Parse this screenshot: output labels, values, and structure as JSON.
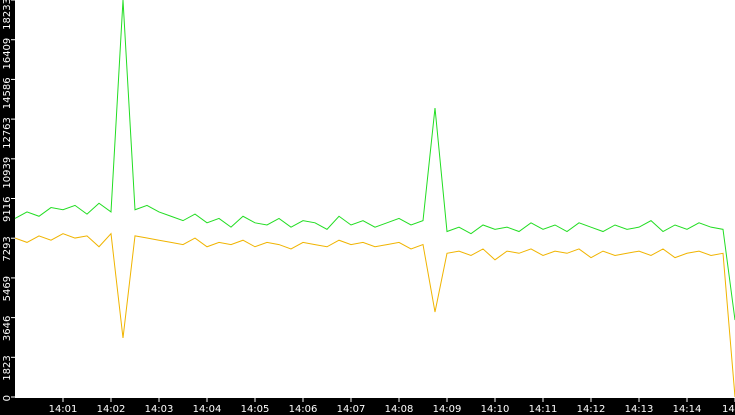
{
  "chart_data": {
    "type": "line",
    "x": [
      0,
      0.25,
      0.5,
      0.75,
      1,
      1.25,
      1.5,
      1.75,
      2,
      2.25,
      2.5,
      2.75,
      3,
      3.25,
      3.5,
      3.75,
      4,
      4.25,
      4.5,
      4.75,
      5,
      5.25,
      5.5,
      5.75,
      6,
      6.25,
      6.5,
      6.75,
      7,
      7.25,
      7.5,
      7.75,
      8,
      8.25,
      8.5,
      8.75,
      9,
      9.25,
      9.5,
      9.75,
      10,
      10.25,
      10.5,
      10.75,
      11,
      11.25,
      11.5,
      11.75,
      12,
      12.25,
      12.5,
      12.75,
      13,
      13.25,
      13.5,
      13.75,
      14,
      14.25,
      14.5,
      14.75,
      15
    ],
    "series": [
      {
        "color": "#22dd22",
        "values": [
          8200,
          8500,
          8300,
          8700,
          8600,
          8800,
          8400,
          8900,
          8500,
          18233,
          8600,
          8800,
          8500,
          8300,
          8100,
          8400,
          8000,
          8200,
          7800,
          8300,
          8000,
          7900,
          8200,
          7800,
          8100,
          8000,
          7700,
          8300,
          7900,
          8100,
          7800,
          8000,
          8200,
          7900,
          8100,
          13273,
          7600,
          7800,
          7500,
          7900,
          7700,
          7800,
          7600,
          8000,
          7700,
          7900,
          7600,
          8000,
          7800,
          7600,
          7900,
          7700,
          7800,
          8100,
          7600,
          7900,
          7700,
          8000,
          7800,
          7700,
          3536
        ]
      },
      {
        "color": "#f0b400",
        "values": [
          7300,
          7100,
          7400,
          7200,
          7500,
          7300,
          7400,
          6900,
          7500,
          2710,
          7400,
          7300,
          7200,
          7100,
          7000,
          7300,
          6900,
          7100,
          7000,
          7200,
          6900,
          7100,
          7000,
          6800,
          7100,
          7000,
          6900,
          7200,
          7000,
          7100,
          6900,
          7000,
          7100,
          6800,
          7000,
          3904,
          6600,
          6700,
          6500,
          6800,
          6300,
          6700,
          6600,
          6800,
          6500,
          6700,
          6600,
          6800,
          6400,
          6700,
          6500,
          6600,
          6700,
          6500,
          6800,
          6400,
          6600,
          6700,
          6500,
          6600,
          0
        ]
      }
    ],
    "xlim": [
      0,
      15
    ],
    "xticks": [
      {
        "value": 1,
        "label": "14:01"
      },
      {
        "value": 2,
        "label": "14:02"
      },
      {
        "value": 3,
        "label": "14:03"
      },
      {
        "value": 4,
        "label": "14:04"
      },
      {
        "value": 5,
        "label": "14:05"
      },
      {
        "value": 6,
        "label": "14:06"
      },
      {
        "value": 7,
        "label": "14:07"
      },
      {
        "value": 8,
        "label": "14:08"
      },
      {
        "value": 9,
        "label": "14:09"
      },
      {
        "value": 10,
        "label": "14:10"
      },
      {
        "value": 11,
        "label": "14:11"
      },
      {
        "value": 12,
        "label": "14:12"
      },
      {
        "value": 13,
        "label": "14:13"
      },
      {
        "value": 14,
        "label": "14:14"
      },
      {
        "value": 15,
        "label": "14"
      }
    ],
    "ylim": [
      0,
      18233
    ],
    "yticks": [
      0,
      1823,
      3646,
      5469,
      7293,
      9116,
      10939,
      12763,
      14586,
      16409,
      18233
    ]
  }
}
